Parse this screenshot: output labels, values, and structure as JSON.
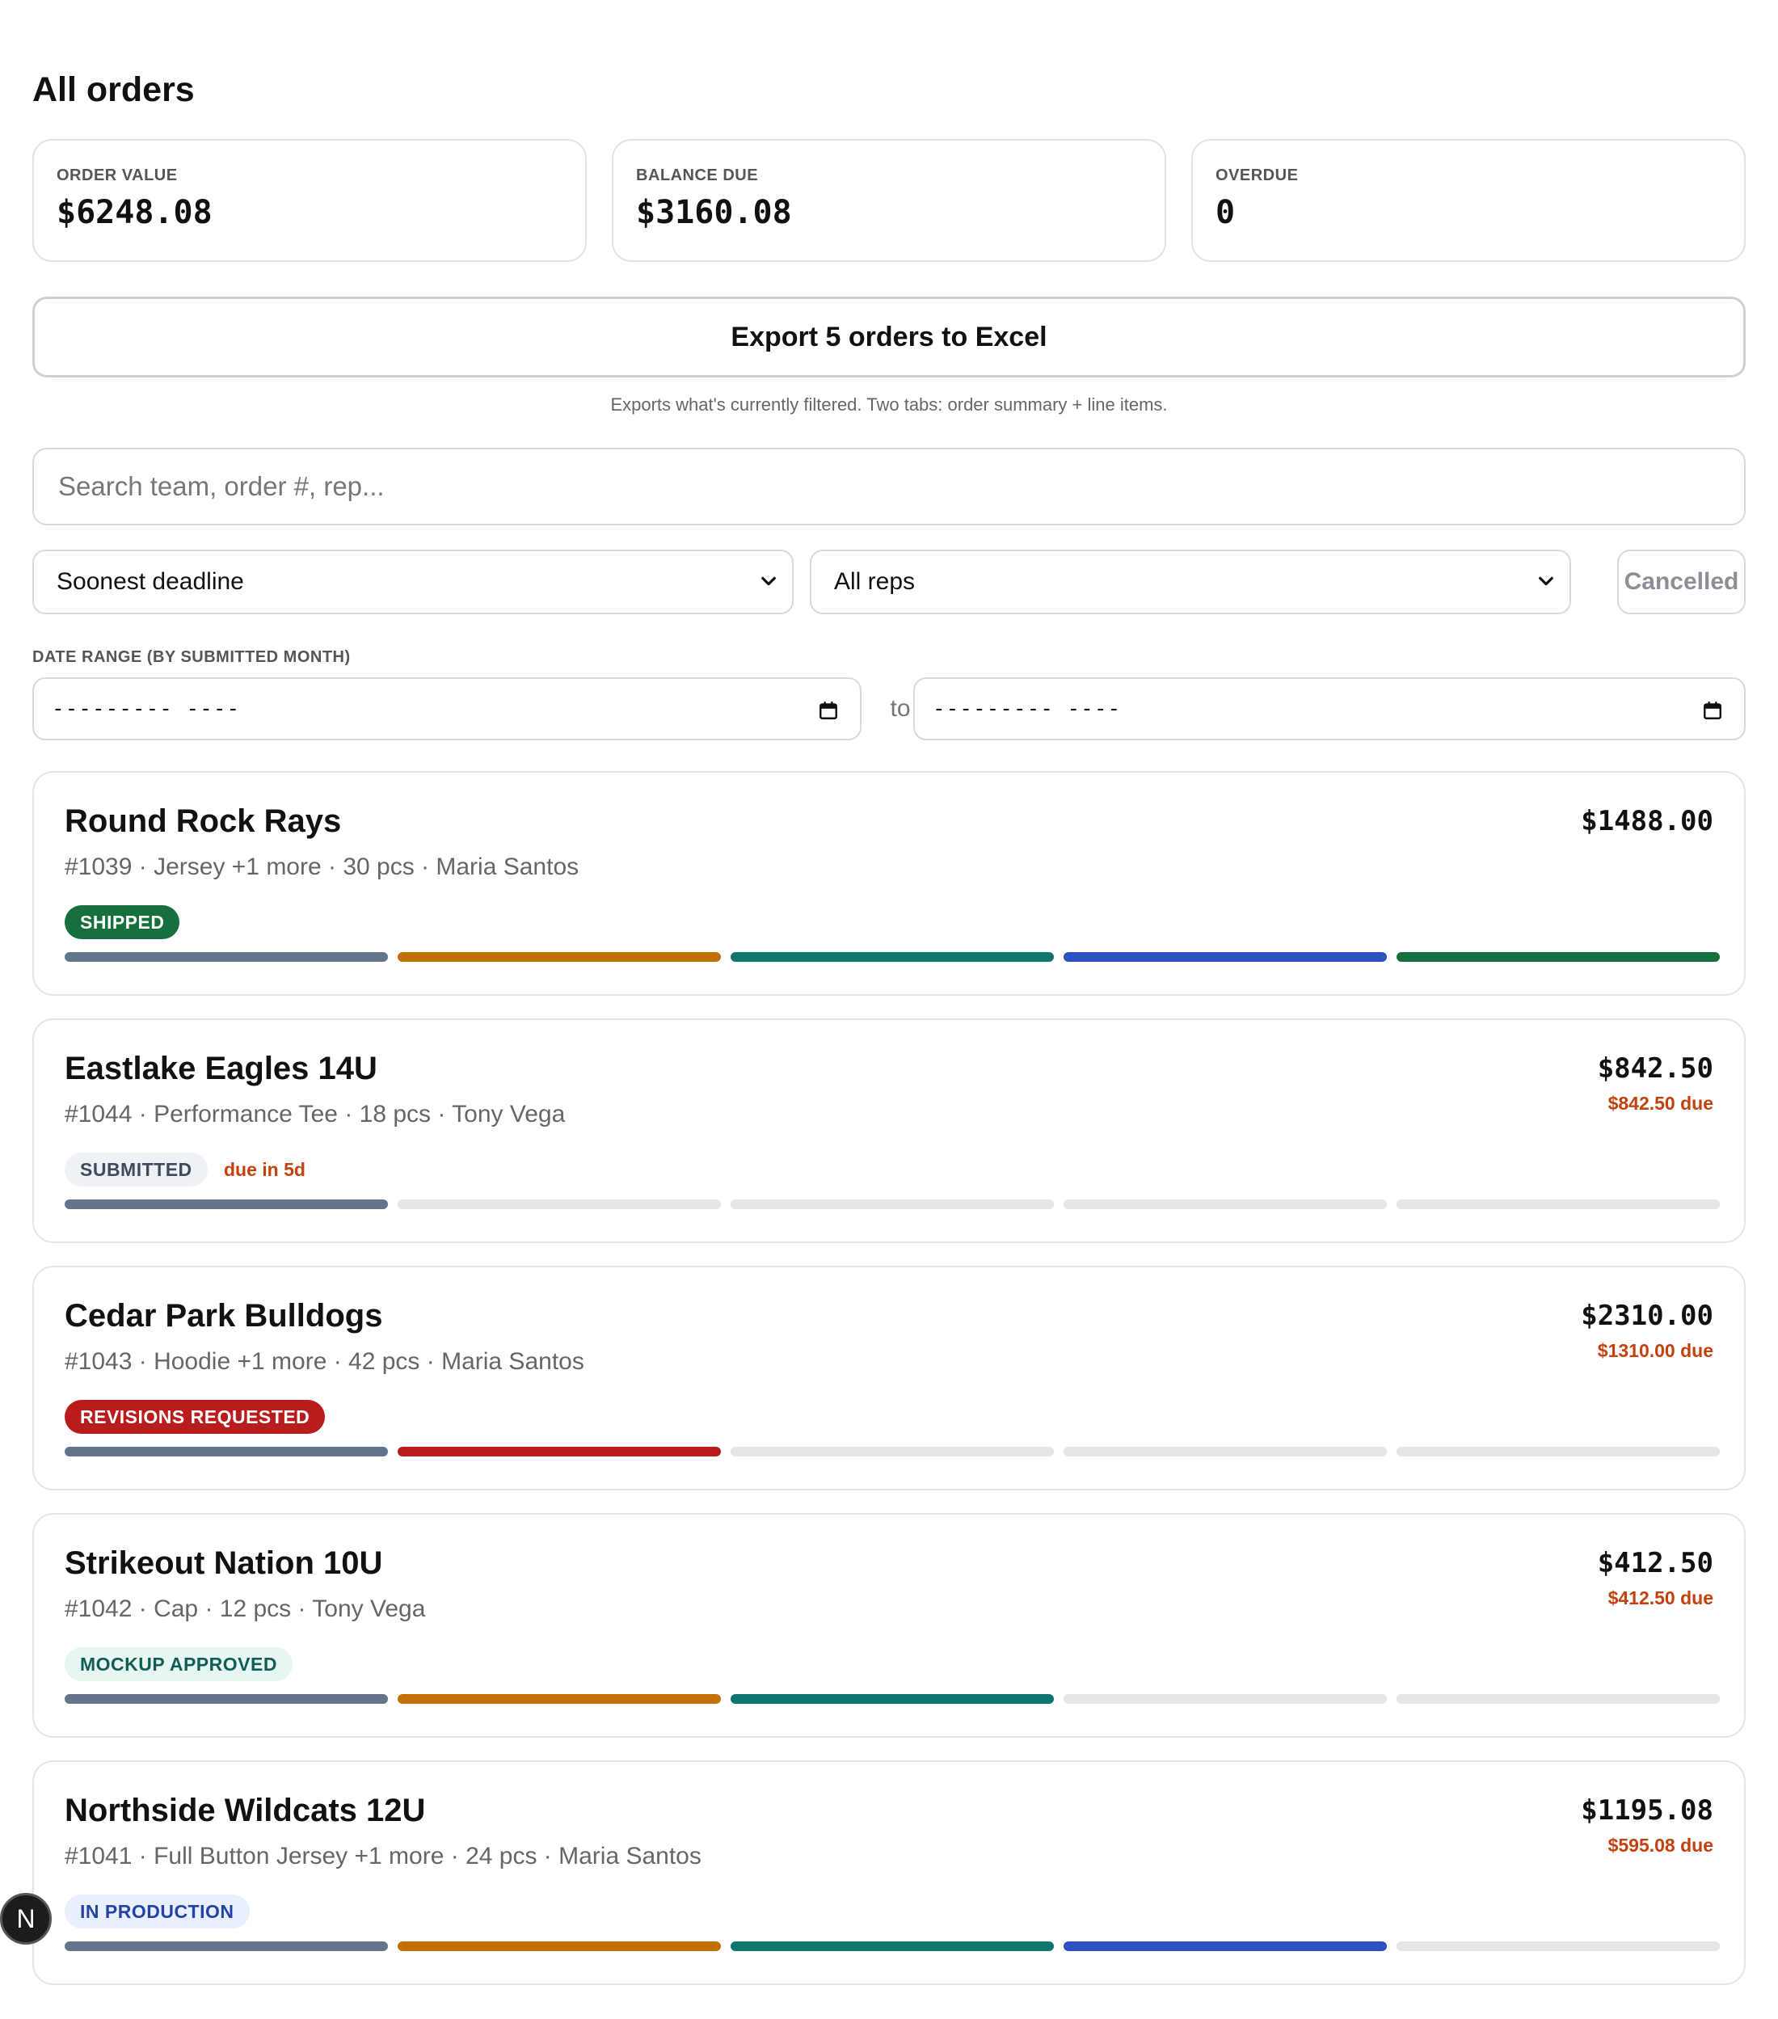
{
  "page": {
    "title": "All orders"
  },
  "stats": [
    {
      "label": "ORDER VALUE",
      "value": "$6248.08"
    },
    {
      "label": "BALANCE DUE",
      "value": "$3160.08"
    },
    {
      "label": "OVERDUE",
      "value": "0"
    }
  ],
  "export": {
    "label": "Export 5 orders to Excel",
    "note": "Exports what's currently filtered. Two tabs: order summary + line items."
  },
  "search": {
    "placeholder": "Search team, order #, rep..."
  },
  "filters": {
    "sort_value": "Soonest deadline",
    "rep_value": "All reps",
    "cancelled_label": "Cancelled"
  },
  "date_range": {
    "label": "DATE RANGE (BY SUBMITTED MONTH)",
    "from_value": "--------- ----",
    "to_label": "to",
    "to_value": "--------- ----"
  },
  "colors": {
    "submitted": "#64748b",
    "mockup": "#c2700a",
    "approved": "#0f766e",
    "production": "#2d4fbf",
    "shipped": "#15703d",
    "revisions": "#b91c1c",
    "empty": "#e5e5e5",
    "due_text": "#c2410c"
  },
  "orders": [
    {
      "team": "Round Rock Rays",
      "meta": "#1039 · Jersey +1 more · 30 pcs · Maria Santos",
      "amount": "$1488.00",
      "due_amount": "",
      "status": "SHIPPED",
      "status_style": "shipped",
      "due_note": "",
      "progress": [
        "submitted",
        "mockup",
        "approved",
        "production",
        "shipped"
      ]
    },
    {
      "team": "Eastlake Eagles 14U",
      "meta": "#1044 · Performance Tee · 18 pcs · Tony Vega",
      "amount": "$842.50",
      "due_amount": "$842.50 due",
      "status": "SUBMITTED",
      "status_style": "submitted",
      "due_note": "due in 5d",
      "progress": [
        "submitted",
        "empty",
        "empty",
        "empty",
        "empty"
      ]
    },
    {
      "team": "Cedar Park Bulldogs",
      "meta": "#1043 · Hoodie +1 more · 42 pcs · Maria Santos",
      "amount": "$2310.00",
      "due_amount": "$1310.00 due",
      "status": "REVISIONS REQUESTED",
      "status_style": "revisions",
      "due_note": "",
      "progress": [
        "submitted",
        "revisions",
        "empty",
        "empty",
        "empty"
      ]
    },
    {
      "team": "Strikeout Nation 10U",
      "meta": "#1042 · Cap · 12 pcs · Tony Vega",
      "amount": "$412.50",
      "due_amount": "$412.50 due",
      "status": "MOCKUP APPROVED",
      "status_style": "approved",
      "due_note": "",
      "progress": [
        "submitted",
        "mockup",
        "approved",
        "empty",
        "empty"
      ]
    },
    {
      "team": "Northside Wildcats 12U",
      "meta": "#1041 · Full Button Jersey +1 more · 24 pcs · Maria Santos",
      "amount": "$1195.08",
      "due_amount": "$595.08 due",
      "status": "IN PRODUCTION",
      "status_style": "production",
      "due_note": "",
      "progress": [
        "submitted",
        "mockup",
        "approved",
        "production",
        "empty"
      ]
    }
  ],
  "dev_badge": {
    "label": "N"
  }
}
